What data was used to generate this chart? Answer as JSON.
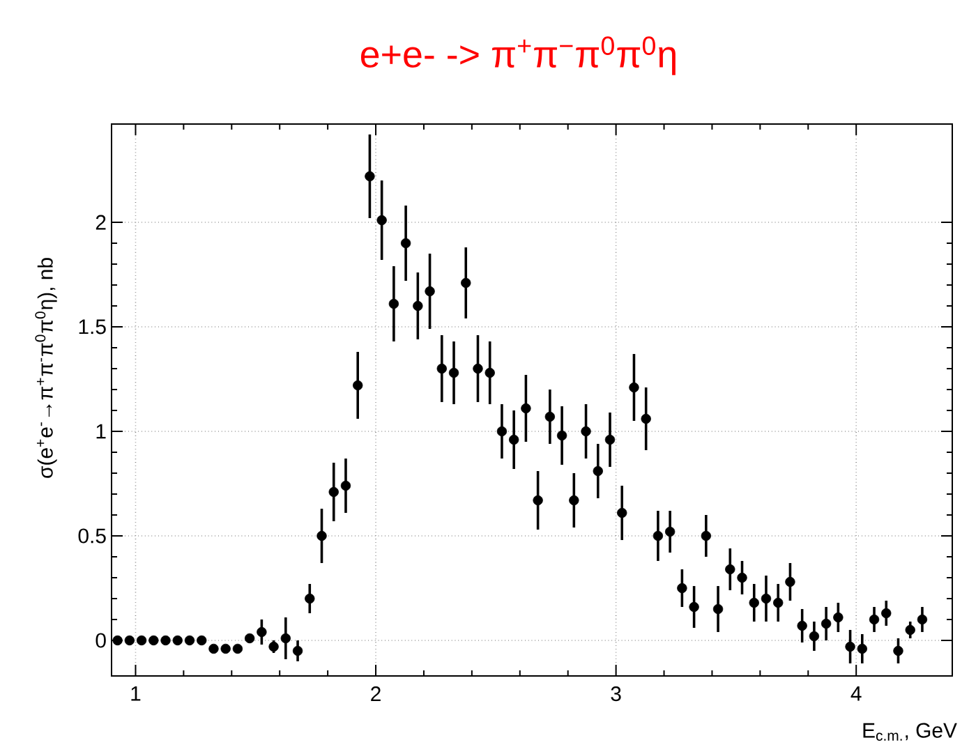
{
  "chart_data": {
    "type": "scatter",
    "title": "e+e- -> π$^{+}$π$^{−}$π$^{0}$π$^{0}$η",
    "xlabel": "E$_{c.m.}$, GeV",
    "ylabel": "σ(e$^{+}$e$^{-}$→π$^{+}$π$^{-}$π$^{0}$π$^{0}$η), nb",
    "x": [
      0.925,
      0.975,
      1.025,
      1.075,
      1.125,
      1.175,
      1.225,
      1.275,
      1.325,
      1.375,
      1.425,
      1.475,
      1.525,
      1.575,
      1.625,
      1.675,
      1.725,
      1.775,
      1.825,
      1.875,
      1.925,
      1.975,
      2.025,
      2.075,
      2.125,
      2.175,
      2.225,
      2.275,
      2.325,
      2.375,
      2.425,
      2.475,
      2.525,
      2.575,
      2.625,
      2.675,
      2.725,
      2.775,
      2.825,
      2.875,
      2.925,
      2.975,
      3.025,
      3.075,
      3.125,
      3.175,
      3.225,
      3.275,
      3.325,
      3.375,
      3.425,
      3.475,
      3.525,
      3.575,
      3.625,
      3.675,
      3.725,
      3.775,
      3.825,
      3.875,
      3.925,
      3.975,
      4.025,
      4.075,
      4.125,
      4.175,
      4.225,
      4.275
    ],
    "values": [
      0,
      0,
      0,
      0,
      0,
      0,
      0,
      0,
      -0.04,
      -0.04,
      -0.04,
      0.01,
      0.04,
      -0.03,
      0.01,
      -0.05,
      0.2,
      0.5,
      0.71,
      0.74,
      1.22,
      2.22,
      2.01,
      1.61,
      1.9,
      1.6,
      1.67,
      1.3,
      1.28,
      1.71,
      1.3,
      1.28,
      1.0,
      0.96,
      1.11,
      0.67,
      1.07,
      0.98,
      0.67,
      1.0,
      0.81,
      0.96,
      0.61,
      1.21,
      1.06,
      0.5,
      0.52,
      0.25,
      0.16,
      0.5,
      0.15,
      0.34,
      0.3,
      0.18,
      0.2,
      0.18,
      0.28,
      0.07,
      0.02,
      0.08,
      0.11,
      -0.03,
      -0.04,
      0.1,
      0.13,
      -0.05,
      0.05,
      0.1
    ],
    "errors": [
      0.01,
      0.01,
      0.01,
      0.01,
      0.01,
      0.01,
      0.01,
      0.01,
      0.02,
      0.02,
      0.02,
      0.02,
      0.06,
      0.03,
      0.1,
      0.05,
      0.07,
      0.13,
      0.14,
      0.13,
      0.16,
      0.2,
      0.19,
      0.18,
      0.18,
      0.16,
      0.18,
      0.16,
      0.15,
      0.17,
      0.16,
      0.15,
      0.13,
      0.14,
      0.16,
      0.14,
      0.13,
      0.14,
      0.13,
      0.13,
      0.13,
      0.13,
      0.13,
      0.16,
      0.15,
      0.12,
      0.1,
      0.09,
      0.1,
      0.1,
      0.11,
      0.1,
      0.08,
      0.09,
      0.11,
      0.09,
      0.09,
      0.08,
      0.07,
      0.08,
      0.07,
      0.08,
      0.07,
      0.06,
      0.06,
      0.06,
      0.04,
      0.06
    ],
    "color": "#000000",
    "marker": "circle",
    "grid": true,
    "xlim": [
      0.9,
      4.4
    ],
    "ylim": [
      -0.17,
      2.47
    ],
    "xticks": [
      1,
      2,
      3,
      4
    ],
    "yticks": [
      0,
      0.5,
      1,
      1.5,
      2
    ]
  }
}
